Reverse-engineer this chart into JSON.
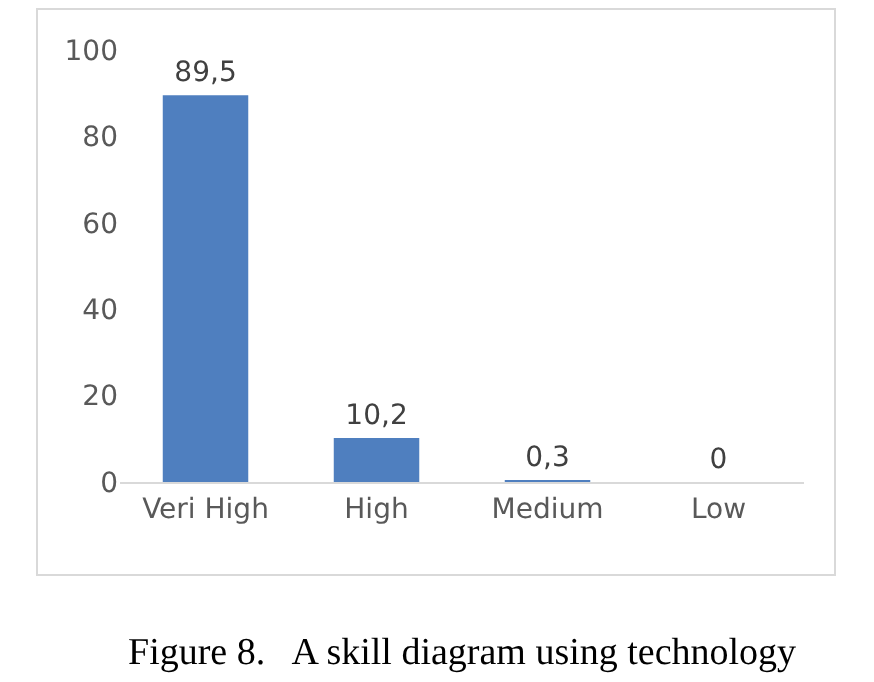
{
  "chart_data": {
    "type": "bar",
    "categories": [
      "Veri High",
      "High",
      "Medium",
      "Low"
    ],
    "values": [
      89.5,
      10.2,
      0.3,
      0
    ],
    "color": "#4f7fbf",
    "value_labels": [
      "89,5",
      "10,2",
      "0,3",
      "0"
    ],
    "ylim": [
      0,
      100
    ],
    "yticks": [
      0,
      20,
      40,
      60,
      80,
      100
    ],
    "grid": false,
    "legend": false,
    "annotations": [
      "Figure 8.   A skill diagram using technology"
    ]
  }
}
